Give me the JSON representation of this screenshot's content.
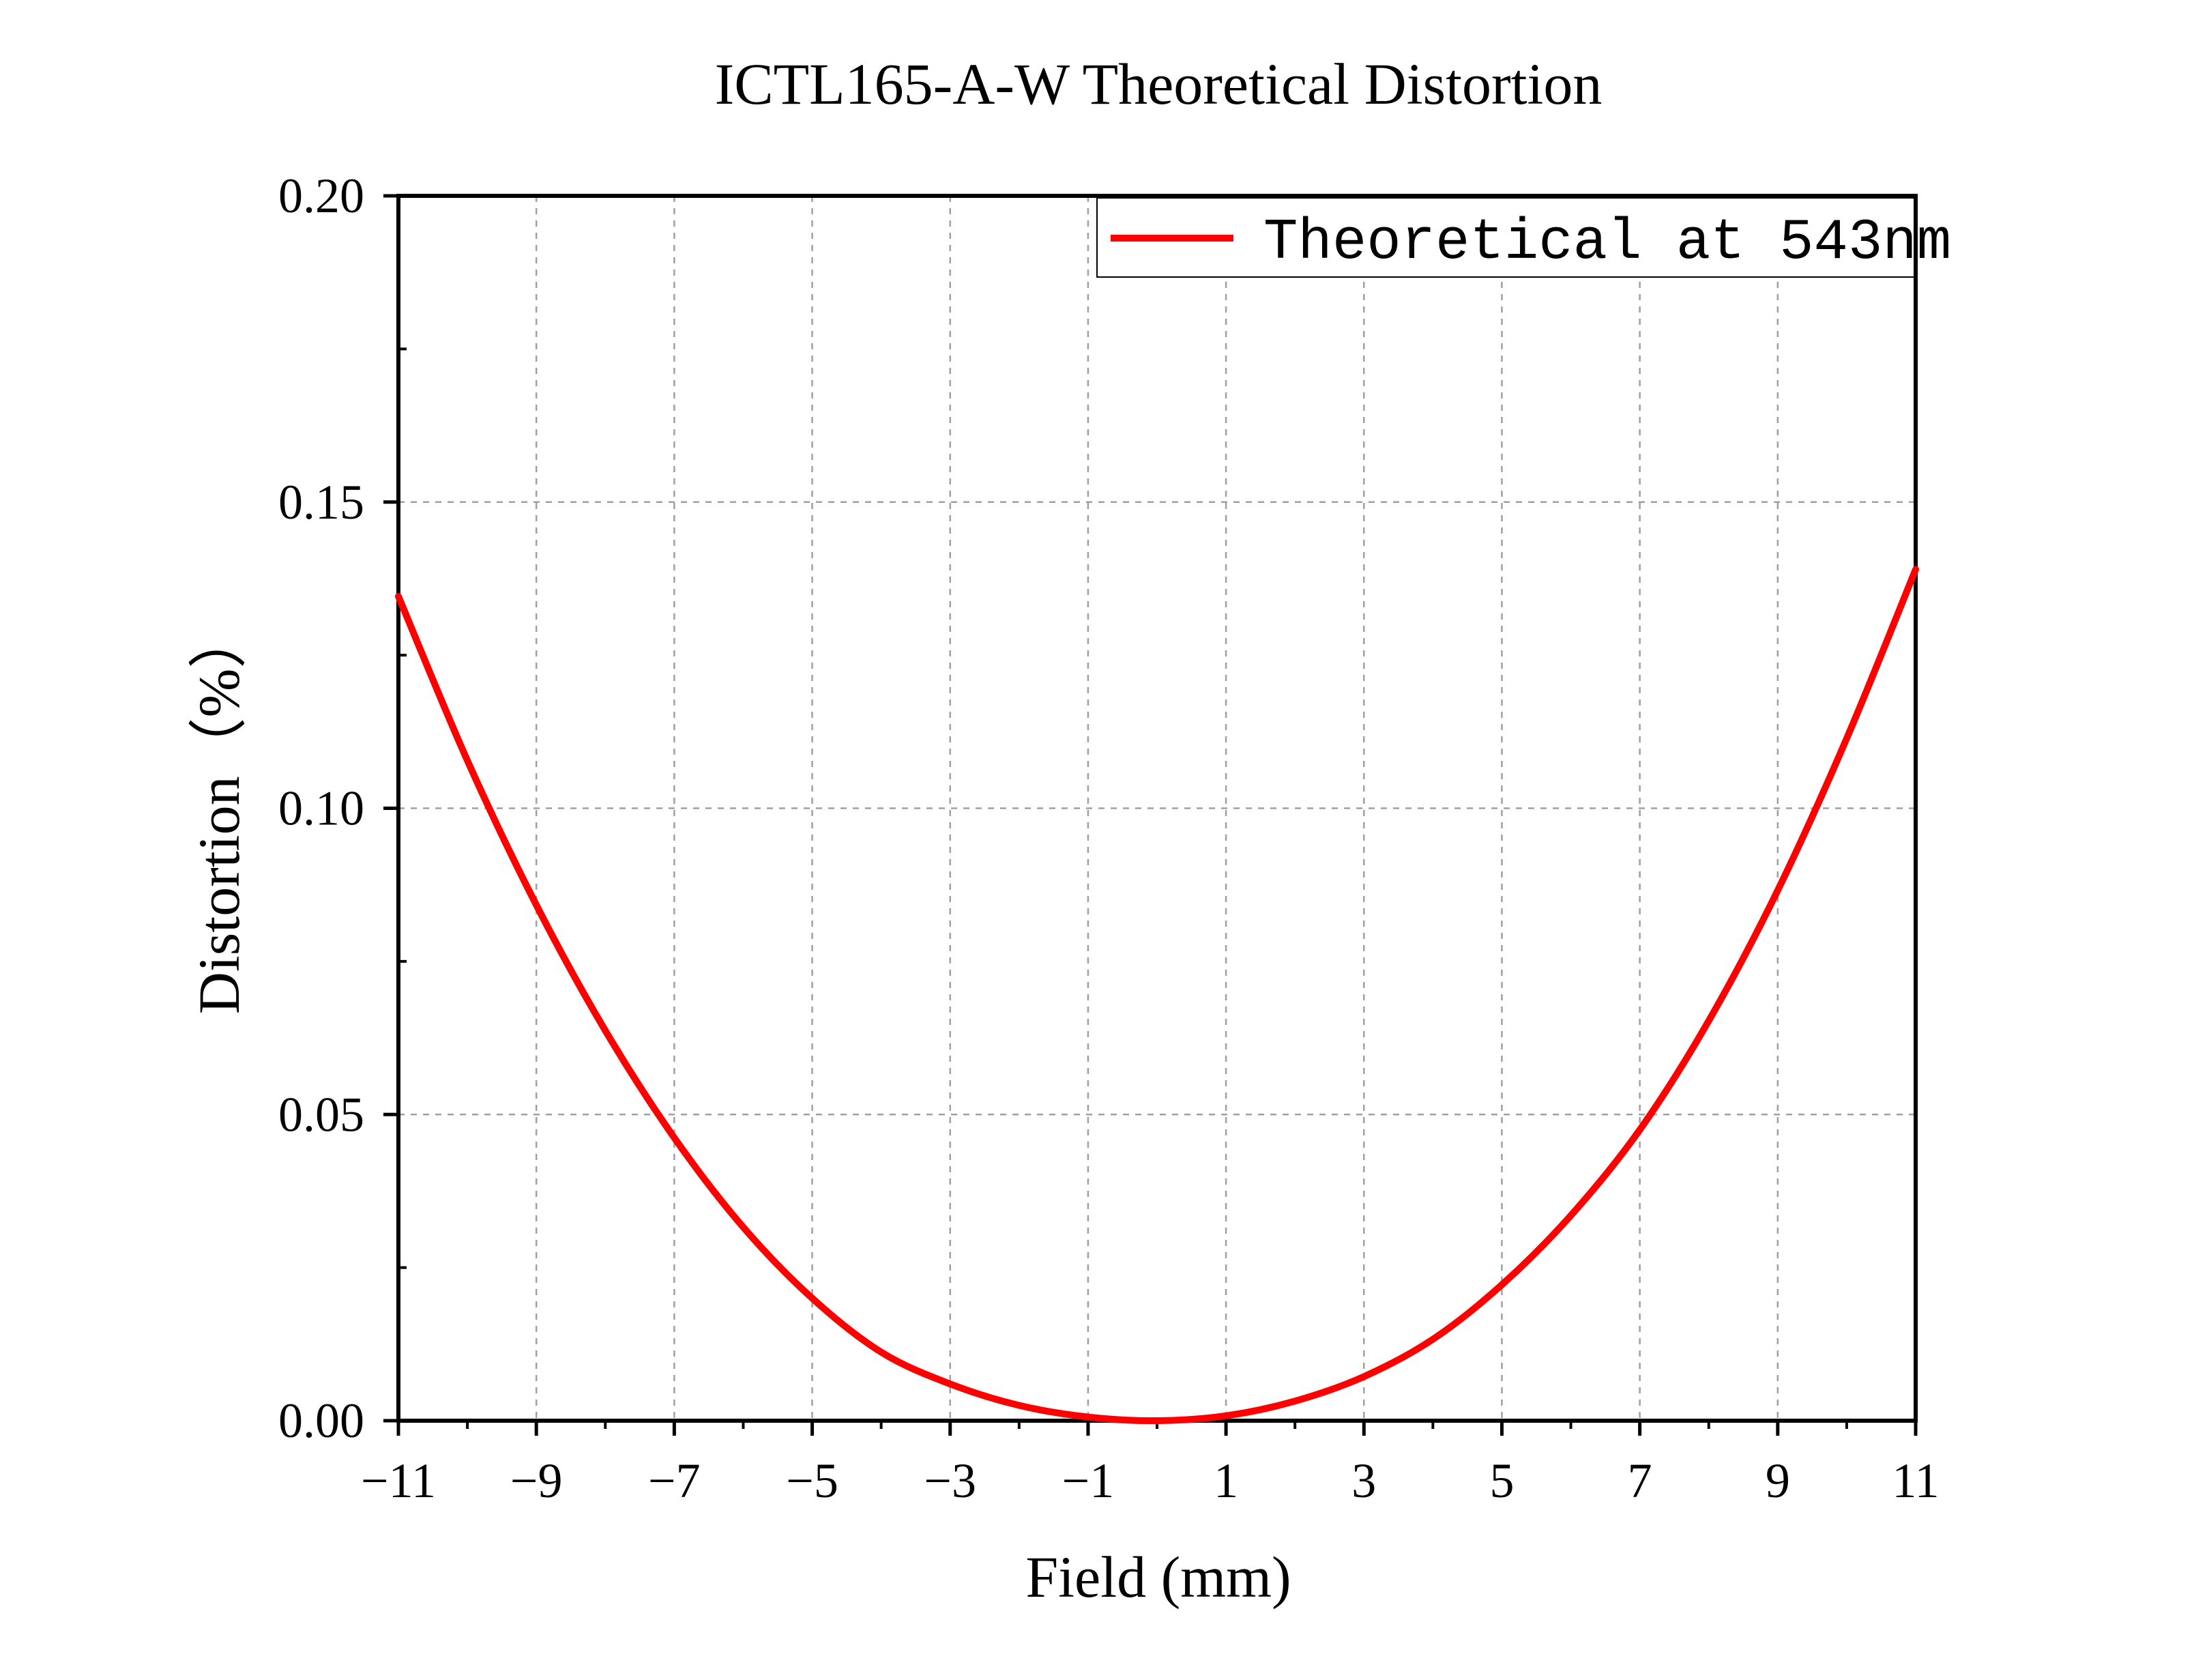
{
  "chart_data": {
    "type": "line",
    "title": "ICTL165-A-W Theoretical Distortion",
    "xlabel": "Field (mm)",
    "ylabel": "Distortion（%）",
    "xlim": [
      -11,
      11
    ],
    "ylim": [
      0,
      0.2
    ],
    "x_ticks": [
      -11,
      -9,
      -7,
      -5,
      -3,
      -1,
      1,
      3,
      5,
      7,
      9,
      11
    ],
    "x_tick_labels": [
      "−11",
      "−9",
      "−7",
      "−5",
      "−3",
      "−1",
      "1",
      "3",
      "5",
      "7",
      "9",
      "11"
    ],
    "y_ticks": [
      0,
      0.05,
      0.1,
      0.15,
      0.2
    ],
    "y_tick_labels": [
      "0.00",
      "0.05",
      "0.10",
      "0.15",
      "0.20"
    ],
    "grid": true,
    "legend_position": "top-right",
    "series": [
      {
        "name": "Theoretical at 543nm",
        "color": "#ff0000",
        "x": [
          -11,
          -10,
          -9,
          -8,
          -7,
          -6,
          -5,
          -4,
          -3,
          -2,
          -1,
          0,
          1,
          2,
          3,
          4,
          5,
          6,
          7,
          8,
          9,
          10,
          11
        ],
        "y": [
          0.1346,
          0.1078,
          0.0842,
          0.0637,
          0.0462,
          0.0316,
          0.02,
          0.0112,
          0.006,
          0.0025,
          0.0006,
          0.0,
          0.0008,
          0.0032,
          0.0072,
          0.0133,
          0.0222,
          0.0335,
          0.0475,
          0.0653,
          0.0866,
          0.1114,
          0.139
        ]
      }
    ]
  }
}
